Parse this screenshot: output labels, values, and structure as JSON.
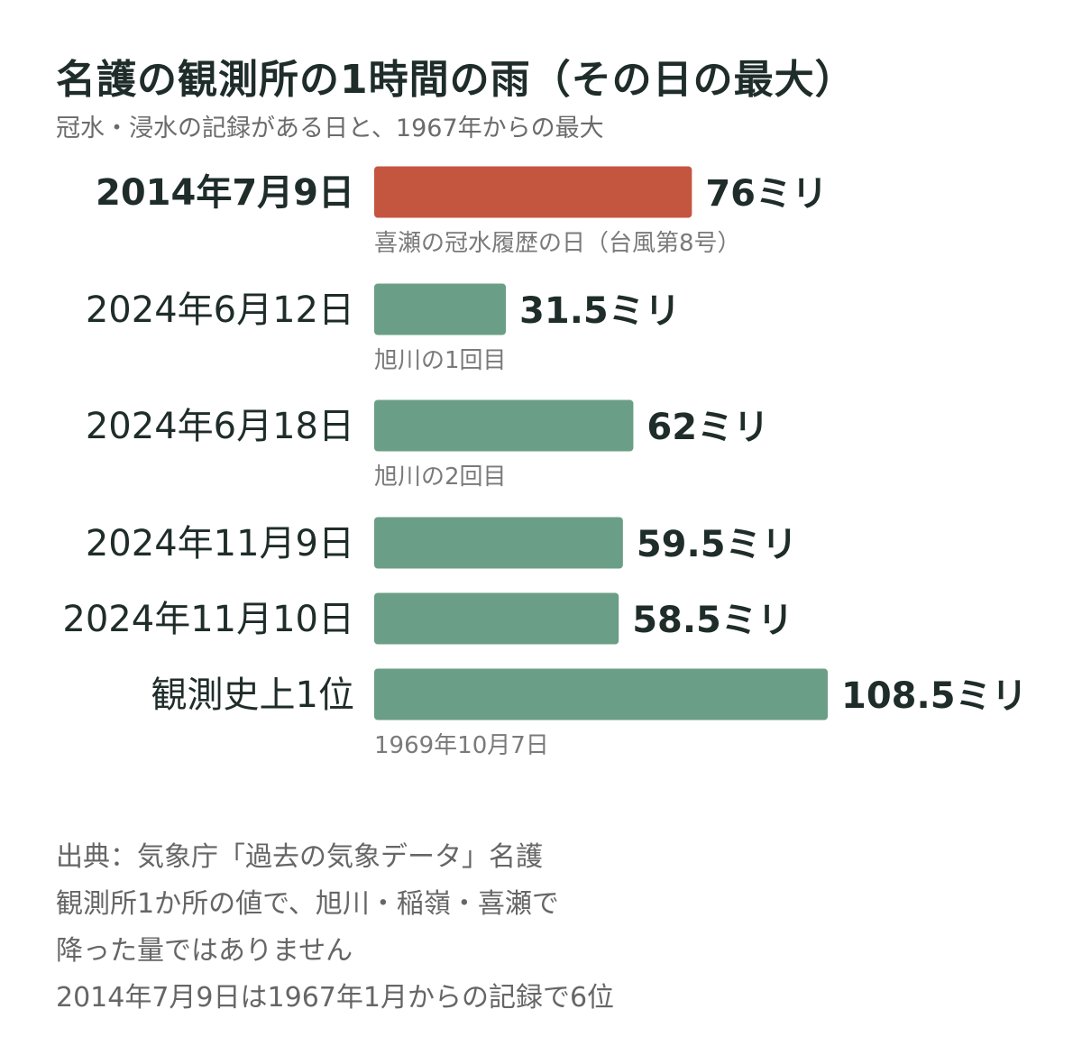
{
  "header": {
    "title": "名護の観測所の1時間の雨（その日の最大）",
    "subtitle": "冠水・浸水の記録がある日と、1967年からの最大"
  },
  "chart_data": {
    "type": "bar",
    "orientation": "horizontal",
    "title": "名護の観測所の1時間の雨（その日の最大）",
    "subtitle": "冠水・浸水の記録がある日と、1967年からの最大",
    "unit": "ミリ",
    "categories": [
      "2014年7月9日",
      "2024年6月12日",
      "2024年6月18日",
      "2024年11月9日",
      "2024年11月10日",
      "観測史上1位"
    ],
    "values": [
      76,
      31.5,
      62,
      59.5,
      58.5,
      108.5
    ],
    "value_labels": [
      "76ミリ",
      "31.5ミリ",
      "62ミリ",
      "59.5ミリ",
      "58.5ミリ",
      "108.5ミリ"
    ],
    "notes": [
      "喜瀬の冠水履歴の日（台風第8号）",
      "旭川の1回目",
      "旭川の2回目",
      "",
      "",
      "1969年10月7日"
    ],
    "highlight_index": 0,
    "colors": {
      "highlight": "#c4553f",
      "default": "#6b9e86"
    },
    "grid": false,
    "legend": "none"
  },
  "footnotes": [
    "出典：気象庁「過去の気象データ」名護",
    "観測所1か所の値で、旭川・稲嶺・喜瀬で",
    "降った量ではありません",
    "2014年7月9日は1967年1月からの記録で6位"
  ]
}
